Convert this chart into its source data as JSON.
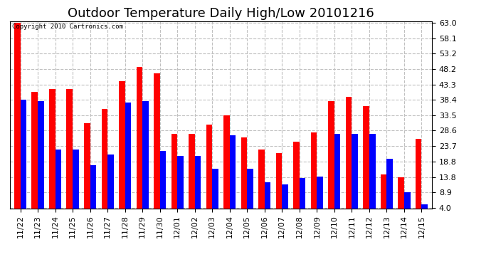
{
  "title": "Outdoor Temperature Daily High/Low 20101216",
  "copyright": "Copyright 2010 Cartronics.com",
  "categories": [
    "11/22",
    "11/23",
    "11/24",
    "11/25",
    "11/26",
    "11/27",
    "11/28",
    "11/29",
    "11/30",
    "12/01",
    "12/02",
    "12/03",
    "12/04",
    "12/05",
    "12/06",
    "12/07",
    "12/08",
    "12/09",
    "12/10",
    "12/11",
    "12/12",
    "12/13",
    "12/14",
    "12/15"
  ],
  "high_values": [
    63.0,
    41.0,
    42.0,
    42.0,
    31.0,
    35.5,
    44.5,
    49.0,
    47.0,
    27.5,
    27.5,
    30.5,
    33.5,
    26.5,
    22.5,
    21.5,
    25.0,
    28.0,
    38.0,
    39.5,
    36.5,
    14.5,
    13.8,
    26.0
  ],
  "low_values": [
    38.5,
    38.0,
    22.5,
    22.5,
    17.5,
    21.0,
    37.5,
    38.0,
    22.0,
    20.5,
    20.5,
    16.5,
    27.0,
    16.5,
    12.0,
    11.5,
    13.5,
    14.0,
    27.5,
    27.5,
    27.5,
    19.5,
    9.0,
    5.0
  ],
  "bar_color_high": "#ff0000",
  "bar_color_low": "#0000ff",
  "background_color": "#ffffff",
  "grid_color": "#c0c0c0",
  "yticks": [
    4.0,
    8.9,
    13.8,
    18.8,
    23.7,
    28.6,
    33.5,
    38.4,
    43.3,
    48.2,
    53.2,
    58.1,
    63.0
  ],
  "ymin": 4.0,
  "ymax": 63.0,
  "title_fontsize": 13,
  "tick_fontsize": 8,
  "bar_width": 0.35
}
